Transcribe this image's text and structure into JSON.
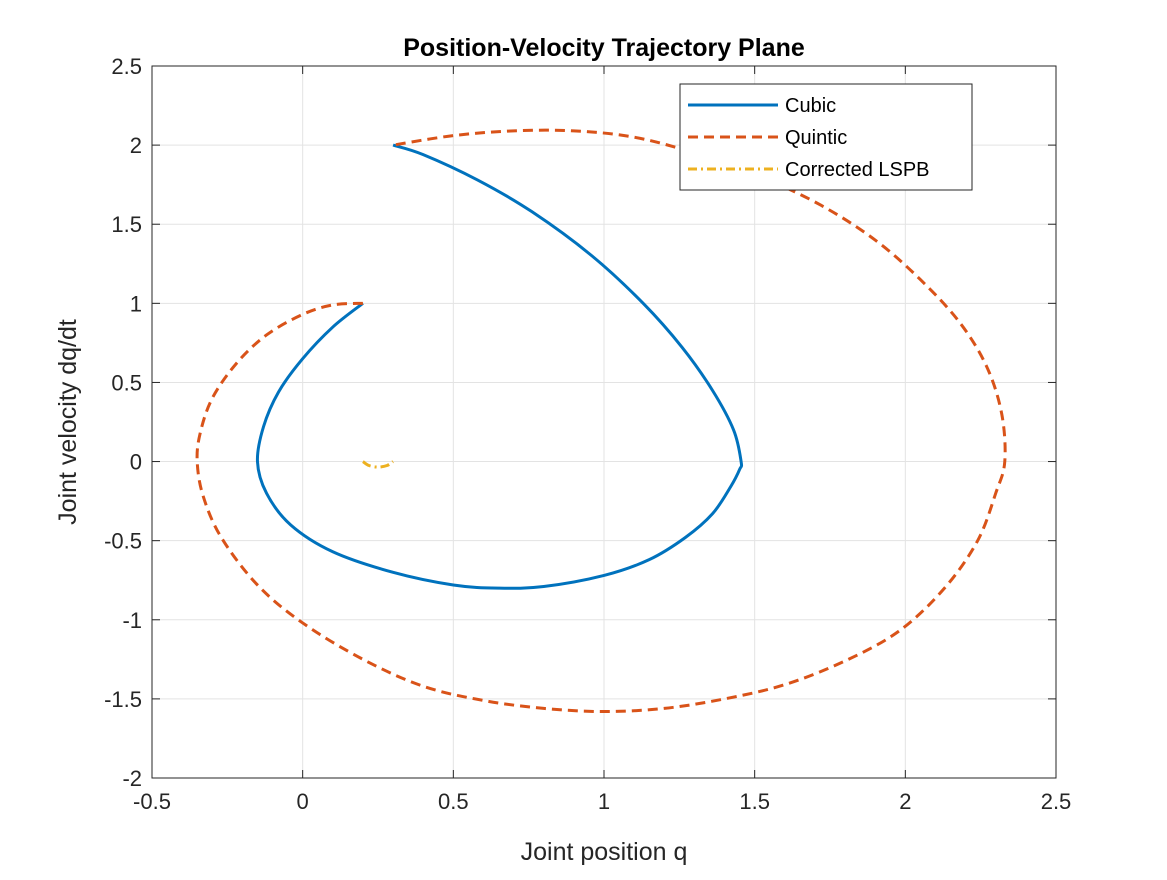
{
  "chart_data": {
    "type": "line",
    "title": "Position-Velocity Trajectory Plane",
    "xlabel": "Joint position q",
    "ylabel": "Joint velocity dq/dt",
    "xlim": [
      -0.5,
      2.5
    ],
    "ylim": [
      -2,
      2.5
    ],
    "xticks": [
      -0.5,
      0,
      0.5,
      1,
      1.5,
      2,
      2.5
    ],
    "xtick_labels": [
      "-0.5",
      "0",
      "0.5",
      "1",
      "1.5",
      "2",
      "2.5"
    ],
    "yticks": [
      -2,
      -1.5,
      -1,
      -0.5,
      0,
      0.5,
      1,
      1.5,
      2,
      2.5
    ],
    "ytick_labels": [
      "-2",
      "-1.5",
      "-1",
      "-0.5",
      "0",
      "0.5",
      "1",
      "1.5",
      "2",
      "2.5"
    ],
    "grid": true,
    "legend_position": "top-right",
    "series": [
      {
        "name": "Cubic",
        "color": "#0072BD",
        "style": "solid",
        "x": [
          0.2,
          0.1,
          0.0,
          -0.08,
          -0.13,
          -0.15,
          -0.12,
          -0.04,
          0.1,
          0.3,
          0.5,
          0.65,
          0.8,
          1.0,
          1.15,
          1.27,
          1.36,
          1.42,
          1.45,
          1.455,
          1.43,
          1.36,
          1.26,
          1.13,
          0.96,
          0.76,
          0.58,
          0.4,
          0.3
        ],
        "y": [
          1.0,
          0.85,
          0.65,
          0.44,
          0.22,
          0.0,
          -0.2,
          -0.4,
          -0.57,
          -0.7,
          -0.78,
          -0.8,
          -0.79,
          -0.72,
          -0.62,
          -0.48,
          -0.33,
          -0.16,
          -0.05,
          0.0,
          0.2,
          0.45,
          0.72,
          1.0,
          1.3,
          1.58,
          1.78,
          1.94,
          2.0
        ]
      },
      {
        "name": "Quintic",
        "color": "#D95319",
        "style": "dashed",
        "x": [
          0.2,
          0.1,
          0.0,
          -0.12,
          -0.22,
          -0.3,
          -0.34,
          -0.35,
          -0.33,
          -0.27,
          -0.15,
          0.0,
          0.2,
          0.4,
          0.6,
          0.8,
          1.0,
          1.2,
          1.4,
          1.6,
          1.8,
          1.98,
          2.13,
          2.24,
          2.3,
          2.33,
          2.32,
          2.27,
          2.18,
          2.05,
          1.9,
          1.72,
          1.52,
          1.3,
          1.1,
          0.9,
          0.7,
          0.5,
          0.3
        ],
        "y": [
          1.0,
          0.99,
          0.93,
          0.8,
          0.62,
          0.4,
          0.18,
          0.0,
          -0.22,
          -0.48,
          -0.78,
          -1.02,
          -1.25,
          -1.42,
          -1.51,
          -1.56,
          -1.58,
          -1.56,
          -1.5,
          -1.41,
          -1.26,
          -1.07,
          -0.8,
          -0.5,
          -0.2,
          0.0,
          0.3,
          0.6,
          0.88,
          1.15,
          1.4,
          1.62,
          1.8,
          1.95,
          2.05,
          2.09,
          2.09,
          2.06,
          2.0
        ]
      },
      {
        "name": "Corrected LSPB",
        "color": "#EDB120",
        "style": "dashdot",
        "x": [
          0.2,
          0.22,
          0.25,
          0.28,
          0.3
        ],
        "y": [
          0.0,
          -0.025,
          -0.035,
          -0.025,
          0.0
        ]
      }
    ]
  }
}
